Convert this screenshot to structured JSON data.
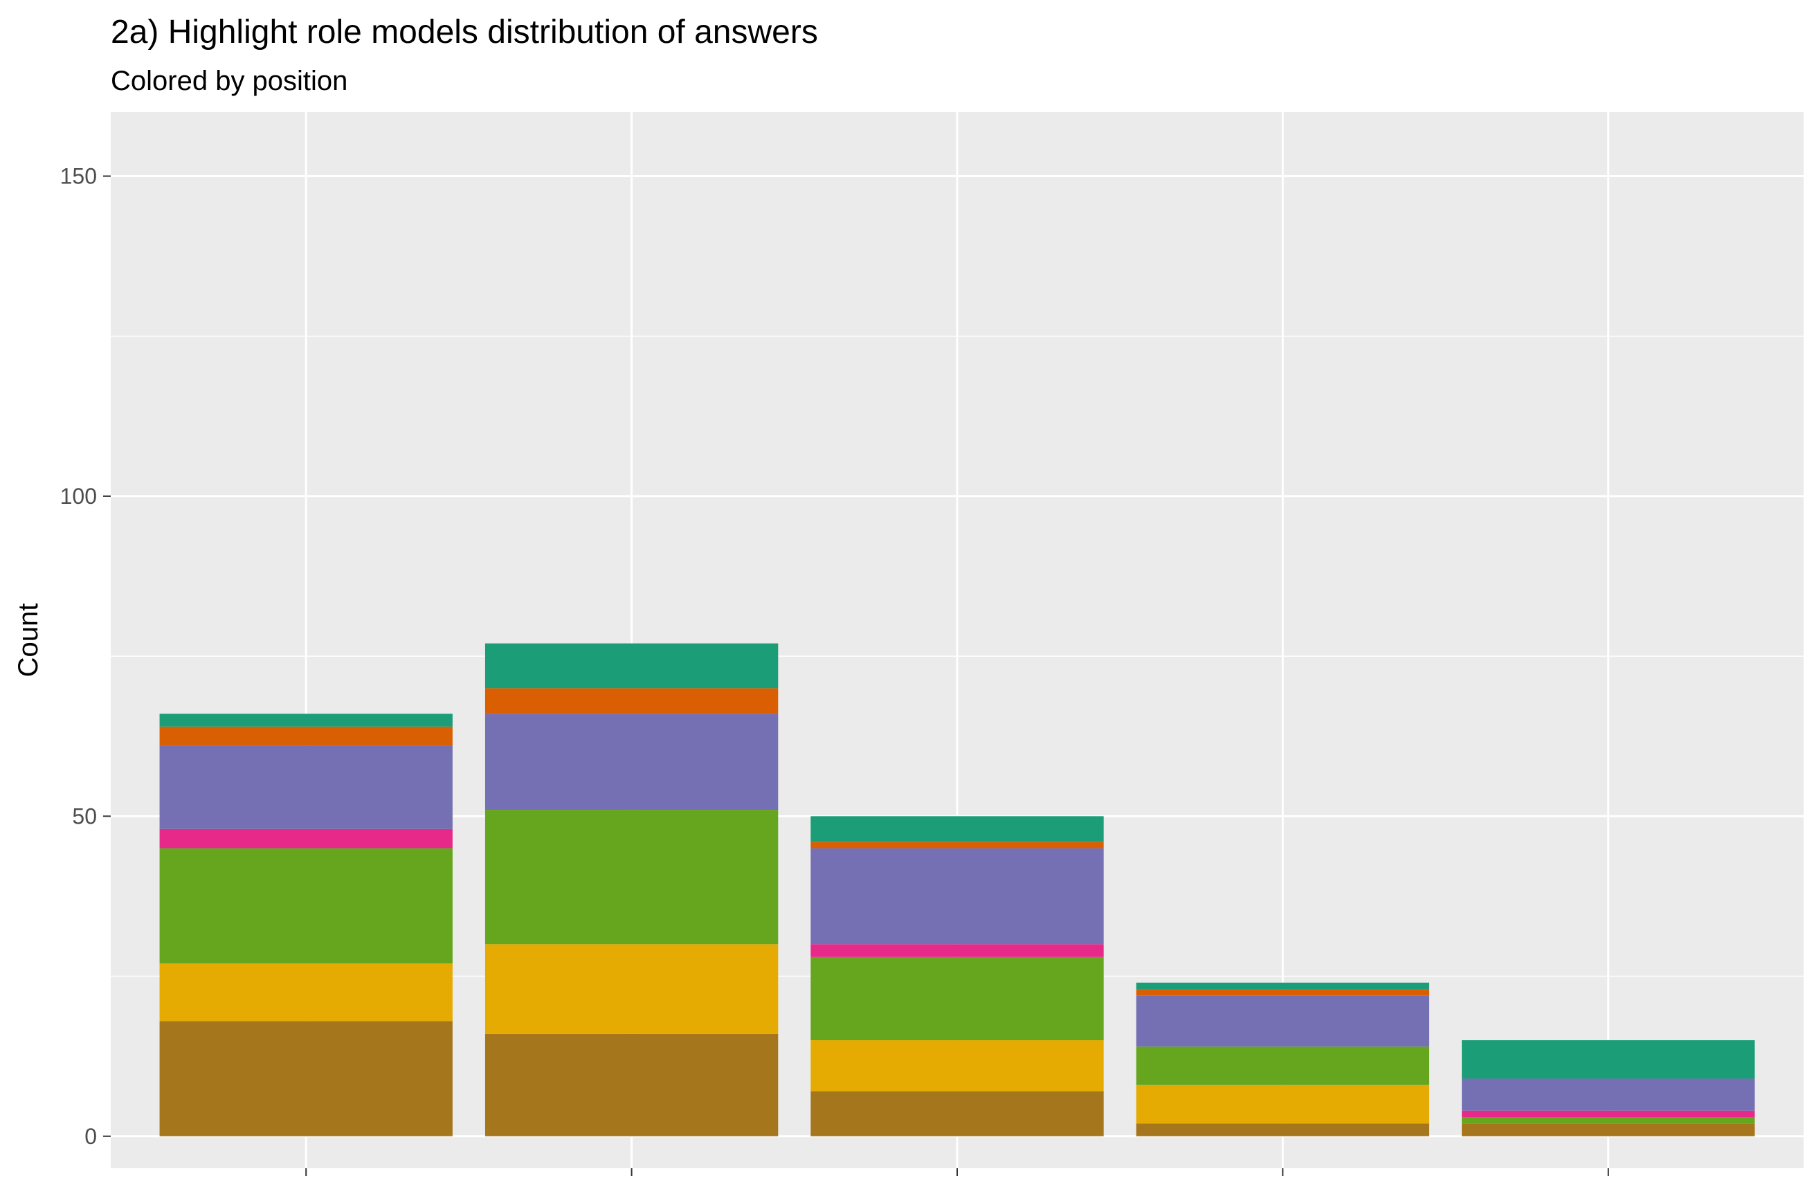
{
  "chart_data": {
    "type": "bar",
    "stacked": true,
    "title": "2a) Highlight role models distribution of answers",
    "subtitle": "Colored by position",
    "xlabel": "",
    "ylabel": "Count",
    "ylim": [
      -5,
      160
    ],
    "yticks": [
      0,
      50,
      100,
      150
    ],
    "yticks_labels": [
      "0",
      "50",
      "100",
      "150"
    ],
    "grid": true,
    "legend": "none",
    "categories": [
      "",
      "",
      "",
      "",
      ""
    ],
    "series": [
      {
        "color": "#A6761D",
        "values": [
          18,
          16,
          7,
          2,
          2
        ]
      },
      {
        "color": "#E6AB02",
        "values": [
          9,
          14,
          8,
          6,
          0
        ]
      },
      {
        "color": "#66A61E",
        "values": [
          18,
          21,
          13,
          6,
          1
        ]
      },
      {
        "color": "#E7298A",
        "values": [
          3,
          0,
          2,
          0,
          1
        ]
      },
      {
        "color": "#7570B3",
        "values": [
          13,
          15,
          15,
          8,
          5
        ]
      },
      {
        "color": "#D95F02",
        "values": [
          3,
          4,
          1,
          1,
          0
        ]
      },
      {
        "color": "#1B9E77",
        "values": [
          2,
          7,
          4,
          1,
          6
        ]
      }
    ]
  },
  "colors": {
    "panel_background": "#EBEBEB",
    "grid_line": "#FFFFFF",
    "tick_text": "#4D4D4D"
  }
}
